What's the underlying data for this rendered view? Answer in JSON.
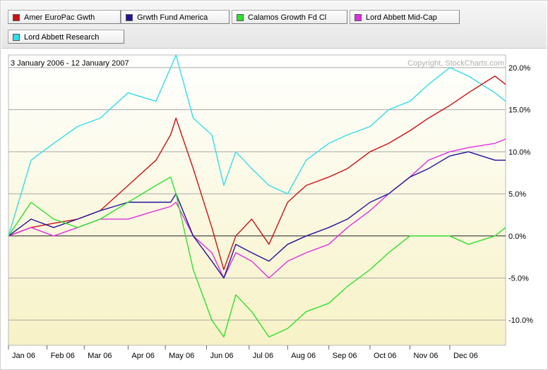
{
  "legend": [
    {
      "label": "Amer EuroPac Gwth",
      "color": "#cc1111"
    },
    {
      "label": "Grwth Fund America",
      "color": "#22139b"
    },
    {
      "label": "Calamos Growth Fd Cl",
      "color": "#2fe02f"
    },
    {
      "label": "Lord Abbett Mid-Cap",
      "color": "#e02fe0"
    },
    {
      "label": "Lord Abbett Research",
      "color": "#33dde8"
    }
  ],
  "header": {
    "date_range": "3 January 2006 - 12 January 2007",
    "copyright": "Copyright, StockCharts.com"
  },
  "chart_data": {
    "type": "line",
    "x_range": [
      "2006-01-03",
      "2007-01-12"
    ],
    "x_ticks": [
      "Jan 06",
      "Feb 06",
      "Mar 06",
      "Apr 06",
      "May 06",
      "Jun 06",
      "Jul 06",
      "Aug 06",
      "Sep 06",
      "Oct 06",
      "Nov 06",
      "Dec 06"
    ],
    "y_ticks": [
      "20.0%",
      "15.0%",
      "10.0%",
      "5.0%",
      "0.0%",
      "-5.0%",
      "-10.0%"
    ],
    "ylim": [
      -13,
      21.5
    ],
    "y_unit": "%",
    "grid": true,
    "series": [
      {
        "name": "Lord Abbett Research",
        "color": "#33dde8",
        "x": [
          "2006-01-03",
          "2006-01-20",
          "2006-02-06",
          "2006-02-24",
          "2006-03-13",
          "2006-04-03",
          "2006-04-24",
          "2006-05-05",
          "2006-05-09",
          "2006-05-22",
          "2006-06-05",
          "2006-06-14",
          "2006-06-23",
          "2006-07-05",
          "2006-07-18",
          "2006-08-01",
          "2006-08-15",
          "2006-09-01",
          "2006-09-15",
          "2006-10-02",
          "2006-10-16",
          "2006-11-01",
          "2006-11-15",
          "2006-12-01",
          "2006-12-15",
          "2007-01-04",
          "2007-01-12"
        ],
        "values": [
          0,
          9,
          11,
          13,
          14,
          17,
          16,
          20,
          21.5,
          14,
          12,
          6,
          10,
          8,
          6,
          5,
          9,
          11,
          12,
          13,
          15,
          16,
          18,
          20,
          19,
          17,
          16
        ]
      },
      {
        "name": "Amer EuroPac Gwth",
        "color": "#cc1111",
        "x": [
          "2006-01-03",
          "2006-01-20",
          "2006-02-06",
          "2006-02-24",
          "2006-03-13",
          "2006-04-03",
          "2006-04-24",
          "2006-05-05",
          "2006-05-09",
          "2006-05-22",
          "2006-06-05",
          "2006-06-14",
          "2006-06-23",
          "2006-07-05",
          "2006-07-18",
          "2006-08-01",
          "2006-08-15",
          "2006-09-01",
          "2006-09-15",
          "2006-10-02",
          "2006-10-16",
          "2006-11-01",
          "2006-11-15",
          "2006-12-01",
          "2006-12-15",
          "2007-01-04",
          "2007-01-12"
        ],
        "values": [
          0,
          1,
          1.5,
          2,
          3,
          6,
          9,
          12,
          14,
          8,
          1,
          -4,
          0,
          2,
          -1,
          4,
          6,
          7,
          8,
          10,
          11,
          12.5,
          14,
          15.5,
          17,
          19,
          18
        ]
      },
      {
        "name": "Lord Abbett Mid-Cap",
        "color": "#e02fe0",
        "x": [
          "2006-01-03",
          "2006-01-20",
          "2006-02-06",
          "2006-02-24",
          "2006-03-13",
          "2006-04-03",
          "2006-04-24",
          "2006-05-05",
          "2006-05-09",
          "2006-05-22",
          "2006-06-05",
          "2006-06-14",
          "2006-06-23",
          "2006-07-05",
          "2006-07-18",
          "2006-08-01",
          "2006-08-15",
          "2006-09-01",
          "2006-09-15",
          "2006-10-02",
          "2006-10-16",
          "2006-11-01",
          "2006-11-15",
          "2006-12-01",
          "2006-12-15",
          "2007-01-04",
          "2007-01-12"
        ],
        "values": [
          0,
          1,
          0,
          1,
          2,
          2,
          3,
          3.5,
          4,
          0,
          -2,
          -5,
          -2,
          -3,
          -5,
          -3,
          -2,
          -1,
          1,
          3,
          5,
          7,
          9,
          10,
          10.5,
          11,
          11.5
        ]
      },
      {
        "name": "Grwth Fund America",
        "color": "#22139b",
        "x": [
          "2006-01-03",
          "2006-01-20",
          "2006-02-06",
          "2006-02-24",
          "2006-03-13",
          "2006-04-03",
          "2006-04-24",
          "2006-05-05",
          "2006-05-09",
          "2006-05-22",
          "2006-06-05",
          "2006-06-14",
          "2006-06-23",
          "2006-07-05",
          "2006-07-18",
          "2006-08-01",
          "2006-08-15",
          "2006-09-01",
          "2006-09-15",
          "2006-10-02",
          "2006-10-16",
          "2006-11-01",
          "2006-11-15",
          "2006-12-01",
          "2006-12-15",
          "2007-01-04",
          "2007-01-12"
        ],
        "values": [
          0,
          2,
          1,
          2,
          3,
          4,
          4,
          4,
          5,
          0,
          -3,
          -5,
          -1,
          -2,
          -3,
          -1,
          0,
          1,
          2,
          4,
          5,
          7,
          8,
          9.5,
          10,
          9,
          9
        ]
      },
      {
        "name": "Calamos Growth Fd Cl",
        "color": "#2fe02f",
        "x": [
          "2006-01-03",
          "2006-01-20",
          "2006-02-06",
          "2006-02-24",
          "2006-03-13",
          "2006-04-03",
          "2006-04-24",
          "2006-05-05",
          "2006-05-09",
          "2006-05-22",
          "2006-06-05",
          "2006-06-14",
          "2006-06-23",
          "2006-07-05",
          "2006-07-18",
          "2006-08-01",
          "2006-08-15",
          "2006-09-01",
          "2006-09-15",
          "2006-10-02",
          "2006-10-16",
          "2006-11-01",
          "2006-11-15",
          "2006-12-01",
          "2006-12-15",
          "2007-01-04",
          "2007-01-12"
        ],
        "values": [
          0,
          4,
          2,
          1,
          2,
          4,
          6,
          7,
          5,
          -4,
          -10,
          -12,
          -7,
          -9,
          -12,
          -11,
          -9,
          -8,
          -6,
          -4,
          -2,
          0,
          0,
          0,
          -1,
          0,
          1
        ]
      }
    ]
  }
}
